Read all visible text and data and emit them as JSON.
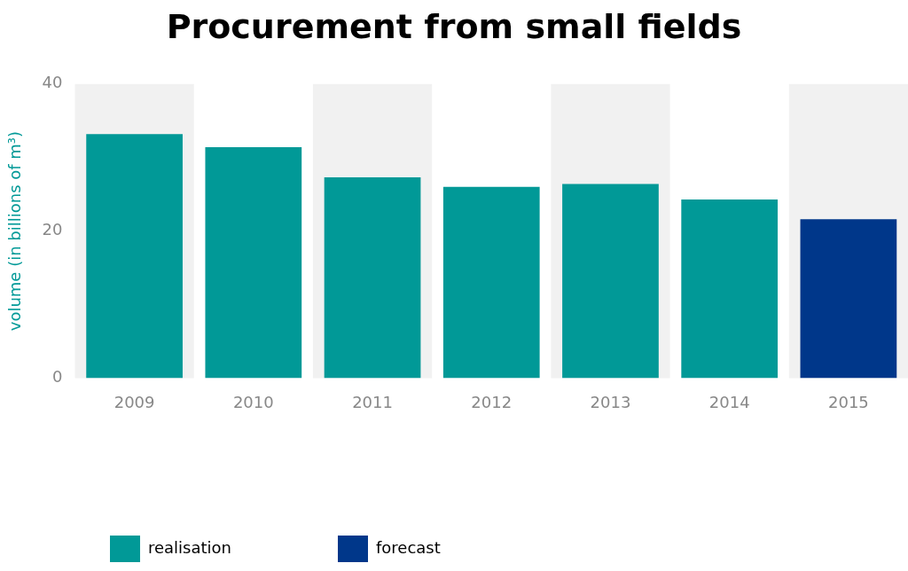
{
  "chart_data": {
    "type": "bar",
    "title": "Procurement from small fields",
    "ylabel": "volume (in billions of m³)",
    "categories": [
      "2009",
      "2010",
      "2011",
      "2012",
      "2013",
      "2014",
      "2015"
    ],
    "series": [
      {
        "name": "realisation",
        "color": "#019997",
        "values": [
          33.2,
          31.4,
          27.3,
          26.0,
          26.4,
          24.3,
          null
        ]
      },
      {
        "name": "forecast",
        "color": "#00378a",
        "values": [
          null,
          null,
          null,
          null,
          null,
          null,
          21.6
        ]
      }
    ],
    "ylim": [
      0,
      40
    ],
    "yticks": [
      0,
      20,
      40
    ],
    "grid": false,
    "legend": "bottom left",
    "bands": [
      {
        "axis": "x",
        "from": "2009",
        "to": "2009",
        "color": "#f1f1f1"
      },
      {
        "axis": "x",
        "from": "2011",
        "to": "2011",
        "color": "#f1f1f1"
      },
      {
        "axis": "x",
        "from": "2013",
        "to": "2013",
        "color": "#f1f1f1"
      },
      {
        "axis": "x",
        "from": "2015",
        "to": "2015",
        "color": "#f1f1f1"
      }
    ]
  }
}
